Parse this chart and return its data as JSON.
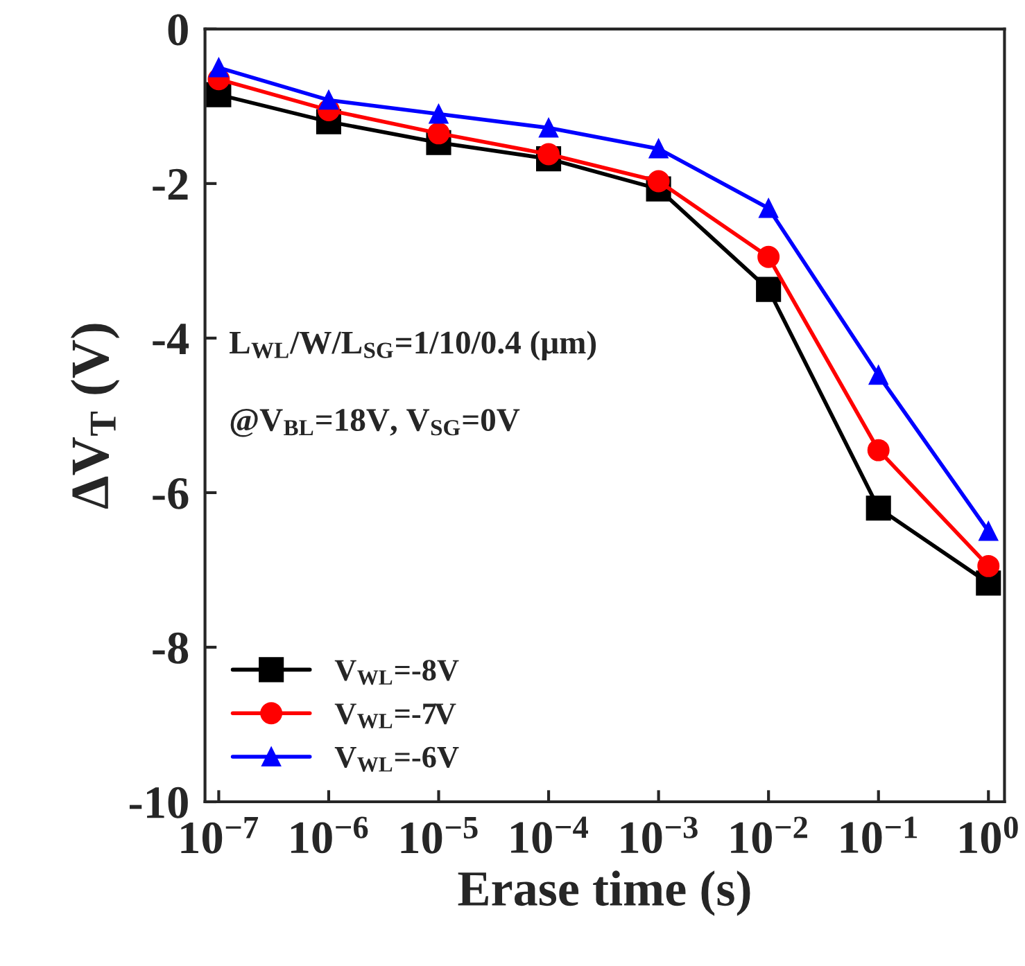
{
  "chart_data": {
    "type": "line",
    "xlabel": "Erase time (s)",
    "ylabel": "ΔV$_{T}$ (V)",
    "x": [
      1e-07,
      1e-06,
      1e-05,
      0.0001,
      0.001,
      0.01,
      0.1,
      1
    ],
    "series": [
      {
        "name": "V$_{WL}$=-8V",
        "color": "#000000",
        "marker": "square",
        "values": [
          -0.85,
          -1.2,
          -1.47,
          -1.68,
          -2.07,
          -3.37,
          -6.2,
          -7.17
        ]
      },
      {
        "name": "V$_{WL}$=-7V",
        "color": "#ff0000",
        "marker": "circle",
        "values": [
          -0.65,
          -1.05,
          -1.35,
          -1.62,
          -1.97,
          -2.95,
          -5.45,
          -6.95
        ]
      },
      {
        "name": "V$_{WL}$=-6V",
        "color": "#0000ff",
        "marker": "triangle",
        "values": [
          -0.5,
          -0.92,
          -1.1,
          -1.28,
          -1.55,
          -2.32,
          -4.48,
          -6.5
        ]
      }
    ],
    "log": "x",
    "xlim": [
      7.5e-08,
      1.4
    ],
    "xticks": [
      {
        "value": 1e-07,
        "label": "10$^{−7}$"
      },
      {
        "value": 1e-06,
        "label": "10$^{−6}$"
      },
      {
        "value": 1e-05,
        "label": "10$^{−5}$"
      },
      {
        "value": 0.0001,
        "label": "10$^{−4}$"
      },
      {
        "value": 0.001,
        "label": "10$^{−3}$"
      },
      {
        "value": 0.01,
        "label": "10$^{−2}$"
      },
      {
        "value": 0.1,
        "label": "10$^{−1}$"
      },
      {
        "value": 1,
        "label": "10$^{0}$"
      }
    ],
    "ylim": [
      -10,
      0
    ],
    "yticks": [
      -10,
      -8,
      -6,
      -4,
      -2,
      0
    ],
    "annotations": [
      "L$_{WL}$/W/L$_{SG}$=1/10/0.4 (μm)",
      "@V$_{BL}$=18V, V$_{SG}$=0V"
    ],
    "legend": "bottom left",
    "grid": false,
    "line_style": "solid"
  }
}
